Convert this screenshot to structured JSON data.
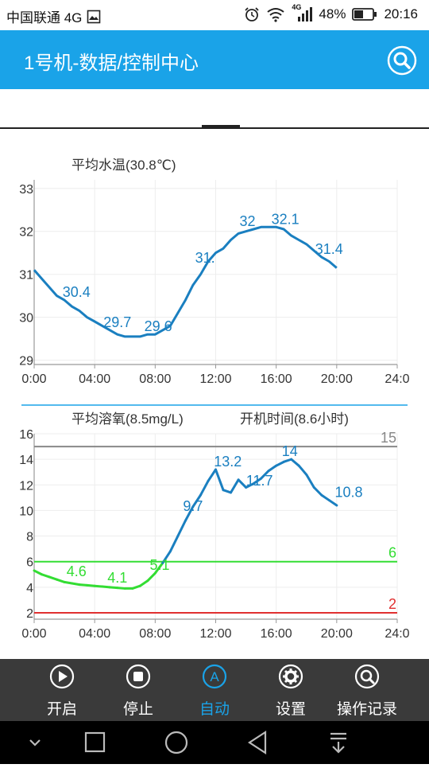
{
  "status_bar": {
    "carrier": "中国联通 4G",
    "network_badge": "4G",
    "battery": "48%",
    "time": "20:16"
  },
  "app_bar": {
    "title": "1号机-数据/控制中心",
    "search_icon": "search-icon"
  },
  "chart_data": [
    {
      "type": "line",
      "title": "平均水温(30.8℃)",
      "xlabel": "",
      "ylabel": "",
      "x_ticks": [
        "0:00",
        "04:00",
        "08:00",
        "12:00",
        "16:00",
        "20:00",
        "24:0"
      ],
      "y_ticks": [
        "29",
        "30",
        "31",
        "32",
        "33"
      ],
      "xlim": [
        0,
        24
      ],
      "ylim": [
        28.9,
        33.2
      ],
      "grid": true,
      "series": [
        {
          "color": "#1a7fc0",
          "x": [
            0,
            0.5,
            1,
            1.5,
            2,
            2.5,
            3,
            3.5,
            4,
            4.5,
            5,
            5.5,
            6,
            6.5,
            7,
            7.5,
            8,
            8.5,
            9,
            9.5,
            10,
            10.5,
            11,
            11.5,
            12,
            12.5,
            13,
            13.5,
            14,
            14.5,
            15,
            15.5,
            16,
            16.5,
            17,
            17.5,
            18,
            18.5,
            19,
            19.5,
            20
          ],
          "y": [
            31.1,
            30.9,
            30.7,
            30.5,
            30.4,
            30.25,
            30.15,
            30.0,
            29.9,
            29.8,
            29.7,
            29.6,
            29.55,
            29.55,
            29.55,
            29.6,
            29.6,
            29.7,
            29.8,
            30.1,
            30.4,
            30.75,
            31.0,
            31.3,
            31.5,
            31.6,
            31.8,
            31.95,
            32.0,
            32.05,
            32.1,
            32.1,
            32.1,
            32.05,
            31.9,
            31.8,
            31.7,
            31.55,
            31.4,
            31.3,
            31.15
          ]
        }
      ],
      "annotations": [
        {
          "x": 2.8,
          "y": 30.4,
          "text": "30.4"
        },
        {
          "x": 5.5,
          "y": 29.7,
          "text": "29.7"
        },
        {
          "x": 8.2,
          "y": 29.6,
          "text": "29.6"
        },
        {
          "x": 11.3,
          "y": 31.2,
          "text": "31."
        },
        {
          "x": 14.1,
          "y": 32.05,
          "text": "32"
        },
        {
          "x": 16.6,
          "y": 32.1,
          "text": "32.1"
        },
        {
          "x": 19.5,
          "y": 31.4,
          "text": "31.4"
        }
      ]
    },
    {
      "type": "line",
      "title": "平均溶氧(8.5mg/L)",
      "subtitle": "开机时间(8.6小时)",
      "xlabel": "",
      "ylabel": "",
      "x_ticks": [
        "0:00",
        "04:00",
        "08:00",
        "12:00",
        "16:00",
        "20:00",
        "24:0"
      ],
      "y_ticks": [
        "2",
        "4",
        "6",
        "8",
        "10",
        "12",
        "14",
        "16"
      ],
      "xlim": [
        0,
        24
      ],
      "ylim": [
        1.5,
        16
      ],
      "grid": true,
      "reference_lines": [
        {
          "y": 15,
          "label": "15",
          "color": "#888888"
        },
        {
          "y": 6,
          "label": "6",
          "color": "#33dd33"
        },
        {
          "y": 2,
          "label": "2",
          "color": "#e03030"
        }
      ],
      "series": [
        {
          "color_below": "#33dd33",
          "color_above": "#1a7fc0",
          "threshold": 6,
          "x": [
            0,
            0.5,
            1,
            1.5,
            2,
            2.5,
            3,
            3.5,
            4,
            4.5,
            5,
            5.5,
            6,
            6.5,
            7,
            7.5,
            8,
            8.5,
            9,
            9.5,
            10,
            10.5,
            11,
            11.5,
            12,
            12.5,
            13,
            13.5,
            14,
            14.5,
            15,
            15.5,
            16,
            16.5,
            17,
            17.5,
            18,
            18.5,
            19,
            19.5,
            20
          ],
          "y": [
            5.3,
            5.0,
            4.8,
            4.6,
            4.4,
            4.3,
            4.2,
            4.15,
            4.1,
            4.05,
            4.0,
            3.95,
            3.9,
            3.9,
            4.1,
            4.5,
            5.1,
            5.9,
            6.8,
            8.0,
            9.2,
            10.3,
            11.2,
            12.3,
            13.2,
            11.6,
            11.4,
            12.4,
            11.8,
            12.1,
            12.5,
            13.1,
            13.5,
            13.8,
            14.0,
            13.5,
            12.8,
            11.8,
            11.2,
            10.8,
            10.4
          ]
        }
      ],
      "annotations": [
        {
          "x": 2.8,
          "y": 4.6,
          "text": "4.6",
          "color": "#33dd33"
        },
        {
          "x": 5.5,
          "y": 4.1,
          "text": "4.1",
          "color": "#33dd33"
        },
        {
          "x": 8.3,
          "y": 5.1,
          "text": "5.1",
          "color": "#33dd33"
        },
        {
          "x": 10.5,
          "y": 9.7,
          "text": "9.7"
        },
        {
          "x": 12.8,
          "y": 13.2,
          "text": "13.2"
        },
        {
          "x": 14.9,
          "y": 11.7,
          "text": "11.7"
        },
        {
          "x": 16.9,
          "y": 14.0,
          "text": "14"
        },
        {
          "x": 20.8,
          "y": 10.8,
          "text": "10.8"
        }
      ]
    }
  ],
  "bottom_nav": [
    {
      "label": "开启",
      "icon": "play-icon",
      "active": false
    },
    {
      "label": "停止",
      "icon": "stop-icon",
      "active": false
    },
    {
      "label": "自动",
      "icon": "auto-icon",
      "active": true
    },
    {
      "label": "设置",
      "icon": "gear-icon",
      "active": false
    },
    {
      "label": "操作记录",
      "icon": "search-icon",
      "active": false
    }
  ],
  "colors": {
    "app_bar": "#1aa3e8",
    "nav_bg": "#3a3a3a",
    "nav_active": "#1aa3e8",
    "line_blue": "#1a7fc0",
    "line_green": "#33dd33",
    "line_red": "#e03030"
  }
}
